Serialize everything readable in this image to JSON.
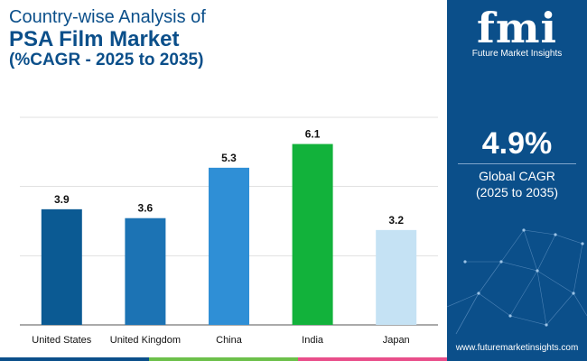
{
  "title": {
    "line1": "Country-wise Analysis of",
    "line2": "PSA Film Market",
    "line3": "(%CAGR - 2025 to 2035)"
  },
  "brand": {
    "logo_text": "fmi",
    "name": "Future Market Insights",
    "website": "www.futuremarketinsights.com"
  },
  "summary": {
    "cagr_value": "4.9%",
    "cagr_label": "Global CAGR",
    "cagr_period": "(2025 to 2035)"
  },
  "colors": {
    "navy": "#0b4f8a",
    "strip": [
      "#0b4f8a",
      "#6cc04a",
      "#e94e8a",
      "#7a3e9d",
      "#0b4f8a"
    ]
  },
  "chart_data": {
    "type": "bar",
    "title": "PSA Film Market",
    "xlabel": "",
    "ylabel": "",
    "ylim": [
      0,
      7
    ],
    "grid": true,
    "categories": [
      "United States",
      "United Kingdom",
      "China",
      "India",
      "Japan"
    ],
    "values": [
      3.9,
      3.6,
      5.3,
      6.1,
      3.2
    ],
    "value_labels": [
      "3.9",
      "3.6",
      "5.3",
      "6.1",
      "3.2"
    ],
    "bar_colors": [
      "#0b5a93",
      "#1c73b4",
      "#2f8fd6",
      "#12b23b",
      "#c5e2f4"
    ]
  }
}
